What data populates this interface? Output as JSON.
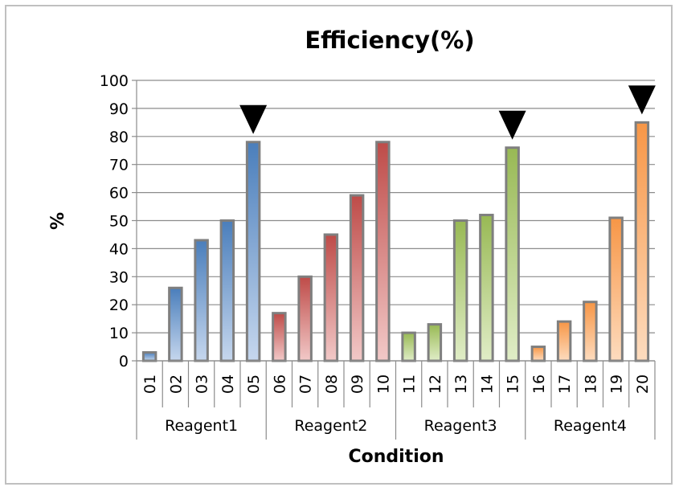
{
  "chart_data": {
    "type": "bar",
    "title": "Efficiency(%)",
    "xlabel": "Condition",
    "ylabel": "%",
    "ylim": [
      0,
      100
    ],
    "yticks": [
      0,
      10,
      20,
      30,
      40,
      50,
      60,
      70,
      80,
      90,
      100
    ],
    "grid": true,
    "legend": "none",
    "categories": [
      "01",
      "02",
      "03",
      "04",
      "05",
      "06",
      "07",
      "08",
      "09",
      "10",
      "11",
      "12",
      "13",
      "14",
      "15",
      "16",
      "17",
      "18",
      "19",
      "20"
    ],
    "values": [
      3,
      26,
      43,
      50,
      78,
      17,
      30,
      45,
      59,
      78,
      10,
      13,
      50,
      52,
      76,
      5,
      14,
      21,
      51,
      85
    ],
    "groups": [
      {
        "label": "Reagent1",
        "start": 0,
        "end": 4,
        "color_top": "#4a7ebb",
        "color_bottom": "#c6d7ee"
      },
      {
        "label": "Reagent2",
        "start": 5,
        "end": 9,
        "color_top": "#be4b48",
        "color_bottom": "#f2c9c8"
      },
      {
        "label": "Reagent3",
        "start": 10,
        "end": 14,
        "color_top": "#98b954",
        "color_bottom": "#e0edc7"
      },
      {
        "label": "Reagent4",
        "start": 15,
        "end": 19,
        "color_top": "#f79646",
        "color_bottom": "#fddcbf"
      }
    ],
    "markers": [
      {
        "shape": "down-triangle",
        "category_index": 4
      },
      {
        "shape": "down-triangle",
        "category_index": 14
      },
      {
        "shape": "down-triangle",
        "category_index": 19
      }
    ]
  }
}
